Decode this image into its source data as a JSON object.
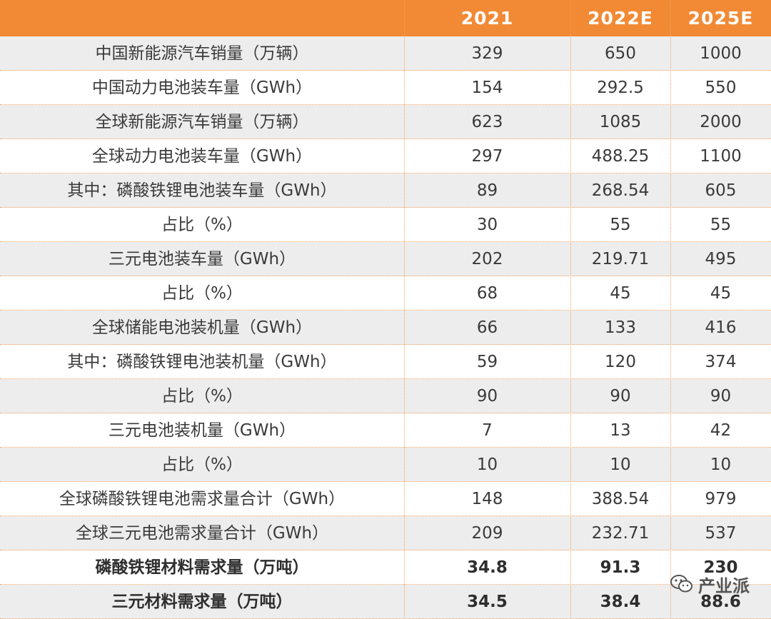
{
  "header": {
    "columns": [
      "",
      "2021",
      "2022E",
      "2025E"
    ]
  },
  "rows": [
    {
      "label": "中国新能源汽车销量（万辆）",
      "v2021": "329",
      "v2022": "650",
      "v2025": "1000"
    },
    {
      "label": "中国动力电池装车量（GWh）",
      "v2021": "154",
      "v2022": "292.5",
      "v2025": "550"
    },
    {
      "label": "全球新能源汽车销量（万辆）",
      "v2021": "623",
      "v2022": "1085",
      "v2025": "2000"
    },
    {
      "label": "全球动力电池装车量（GWh）",
      "v2021": "297",
      "v2022": "488.25",
      "v2025": "1100"
    },
    {
      "label": "其中：磷酸铁锂电池装车量（GWh）",
      "v2021": "89",
      "v2022": "268.54",
      "v2025": "605"
    },
    {
      "label": "占比（%）",
      "v2021": "30",
      "v2022": "55",
      "v2025": "55"
    },
    {
      "label": "三元电池装车量（GWh）",
      "v2021": "202",
      "v2022": "219.71",
      "v2025": "495"
    },
    {
      "label": "占比（%）",
      "v2021": "68",
      "v2022": "45",
      "v2025": "45"
    },
    {
      "label": "全球储能电池装机量（GWh）",
      "v2021": "66",
      "v2022": "133",
      "v2025": "416"
    },
    {
      "label": "其中：磷酸铁锂电池装机量（GWh）",
      "v2021": "59",
      "v2022": "120",
      "v2025": "374"
    },
    {
      "label": "占比（%）",
      "v2021": "90",
      "v2022": "90",
      "v2025": "90"
    },
    {
      "label": "三元电池装机量（GWh）",
      "v2021": "7",
      "v2022": "13",
      "v2025": "42"
    },
    {
      "label": "占比（%）",
      "v2021": "10",
      "v2022": "10",
      "v2025": "10"
    },
    {
      "label": "全球磷酸铁锂电池需求量合计（GWh）",
      "v2021": "148",
      "v2022": "388.54",
      "v2025": "979"
    },
    {
      "label": "全球三元电池需求量合计（GWh）",
      "v2021": "209",
      "v2022": "232.71",
      "v2025": "537"
    },
    {
      "label": "磷酸铁锂材料需求量（万吨）",
      "v2021": "34.8",
      "v2022": "91.3",
      "v2025": "230"
    },
    {
      "label": "三元材料需求量（万吨）",
      "v2021": "34.5",
      "v2022": "38.4",
      "v2025": "88.6"
    }
  ],
  "watermark": {
    "text": "产业派",
    "icon": "wechat-icon"
  },
  "colors": {
    "header_bg": "#f28a35",
    "row_shaded": "#ededed",
    "divider": "#f2a261"
  }
}
